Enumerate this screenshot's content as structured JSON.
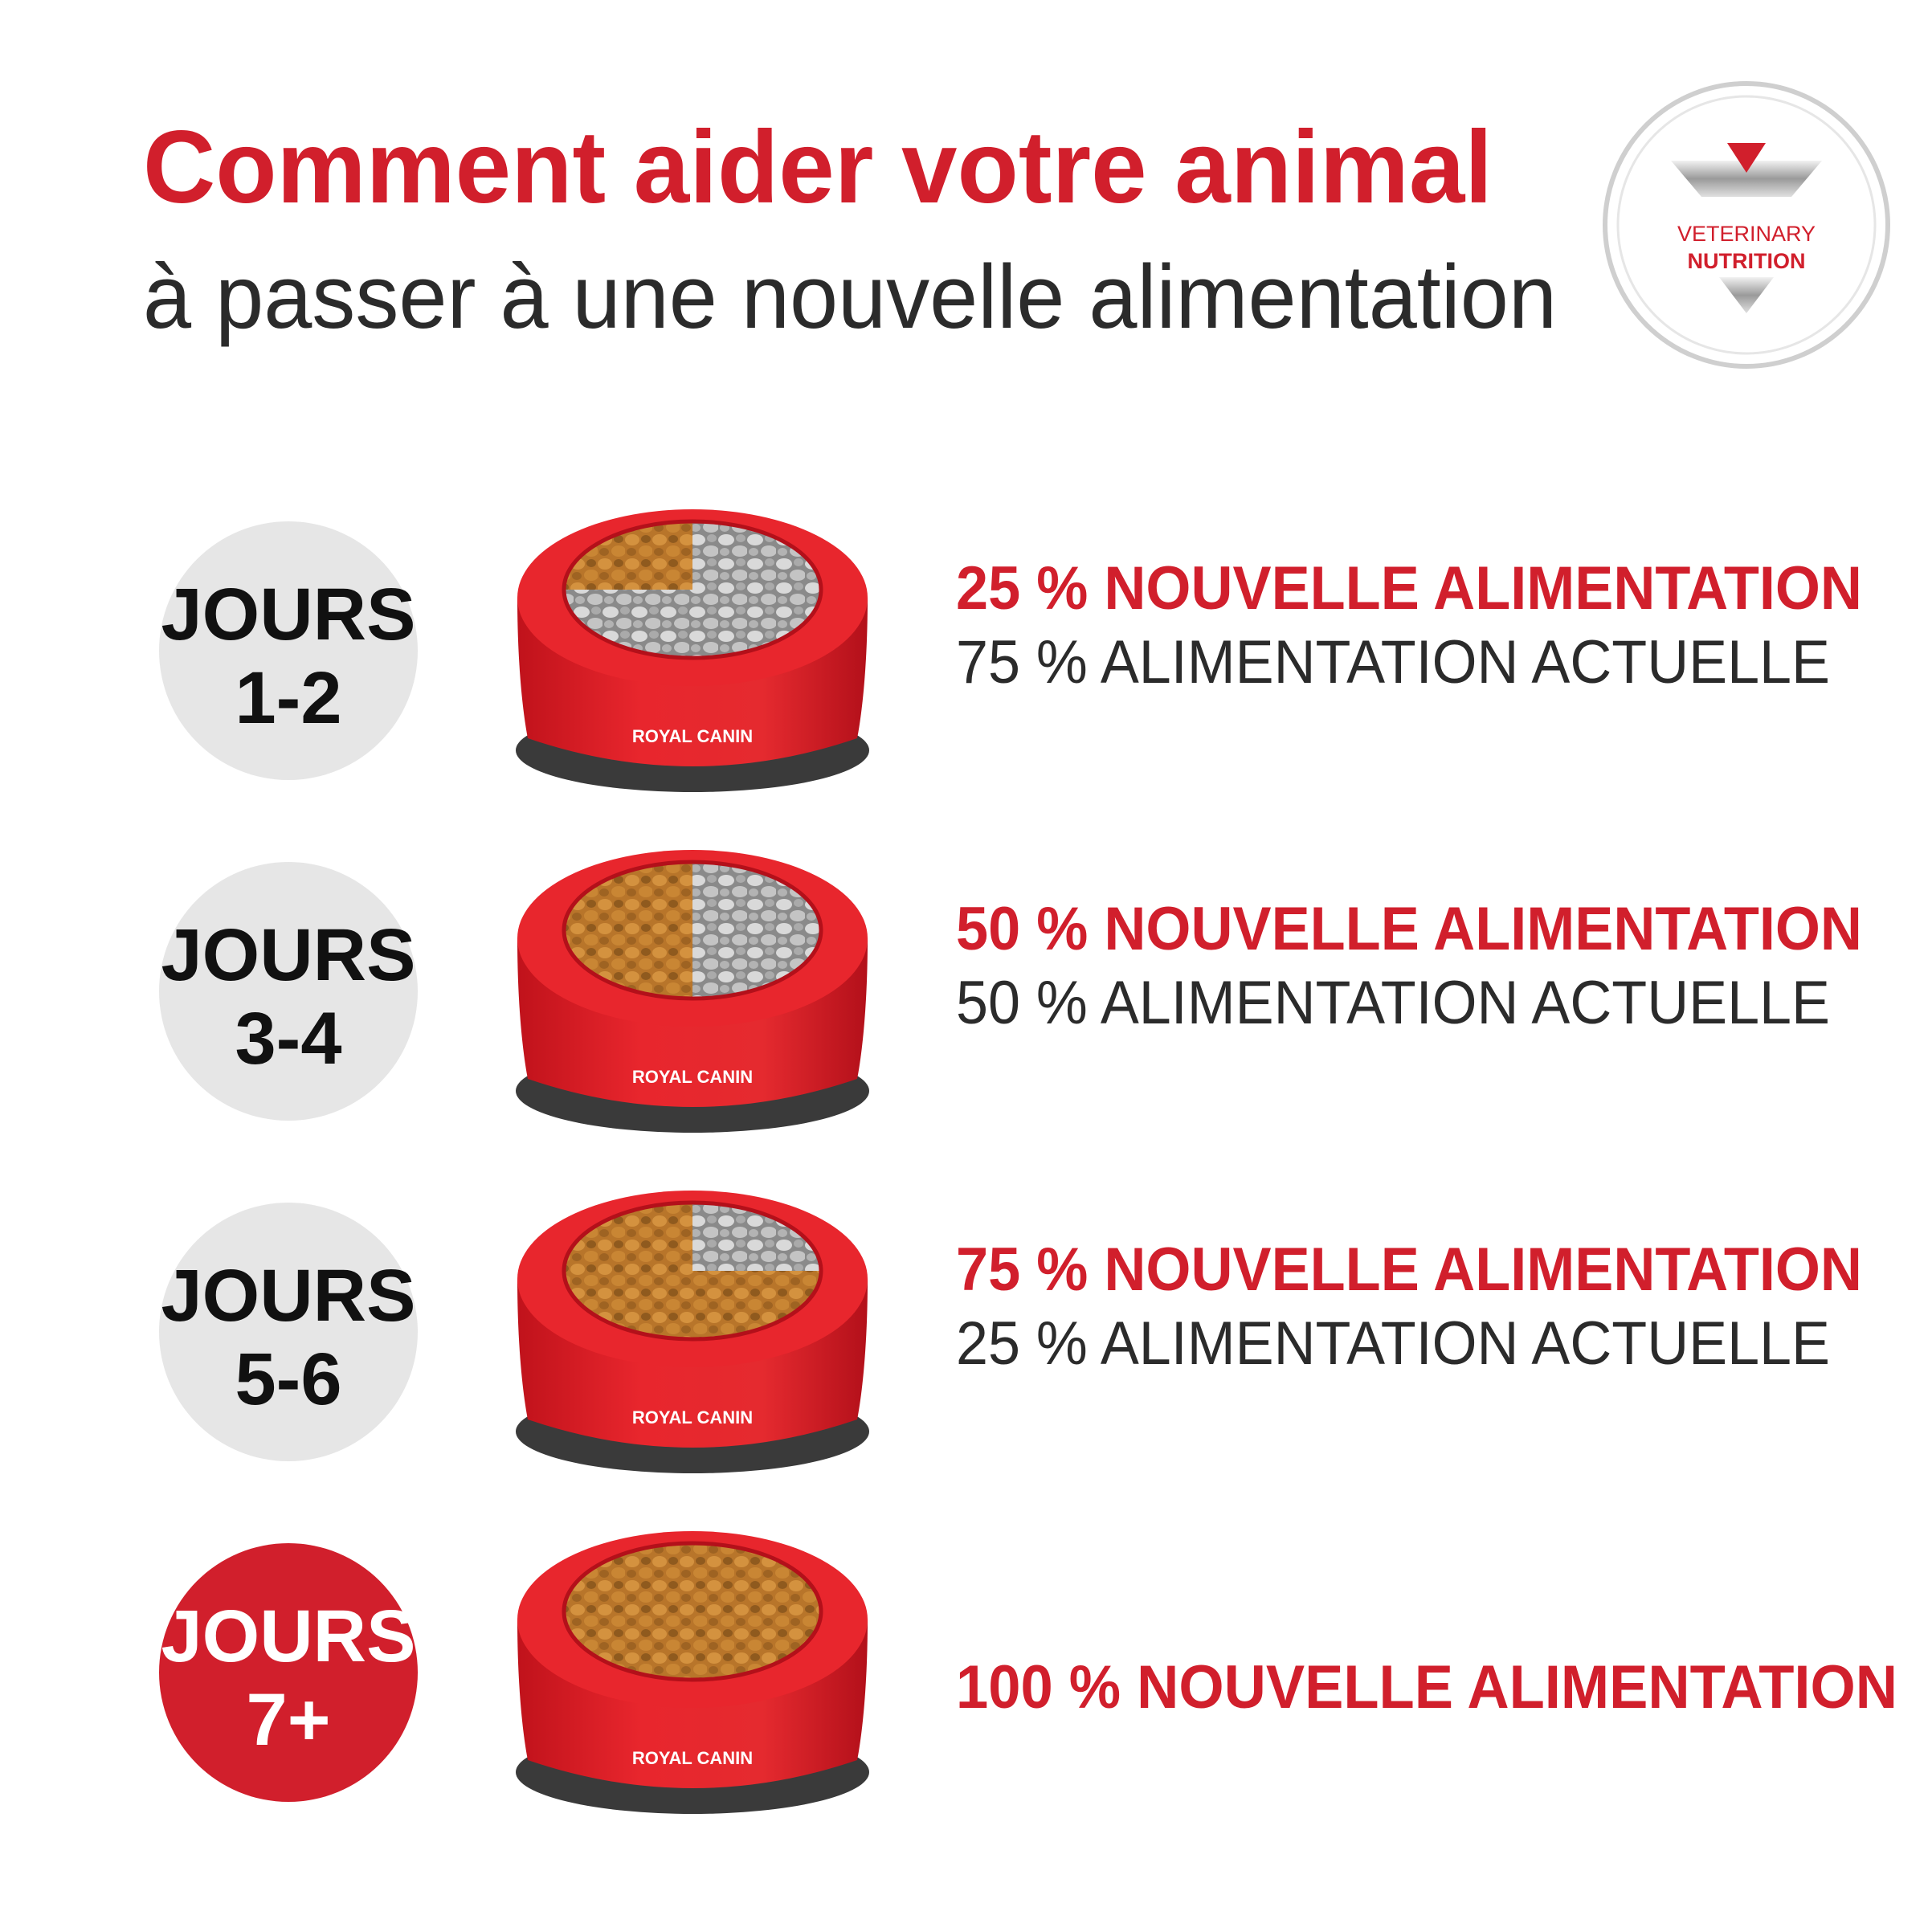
{
  "header": {
    "title": "Comment aider votre animal",
    "subtitle": "à passer à une nouvelle alimentation"
  },
  "badge": {
    "line1": "VETERINARY",
    "line2": "NUTRITION"
  },
  "brand": "ROYAL CANIN",
  "steps": [
    {
      "label": "JOURS",
      "days": "1-2",
      "new": "25 % NOUVELLE ALIMENTATION",
      "current": "75 % ALIMENTATION ACTUELLE"
    },
    {
      "label": "JOURS",
      "days": "3-4",
      "new": "50 % NOUVELLE ALIMENTATION",
      "current": "50 % ALIMENTATION ACTUELLE"
    },
    {
      "label": "JOURS",
      "days": "5-6",
      "new": "75 % NOUVELLE ALIMENTATION",
      "current": "25 % ALIMENTATION ACTUELLE"
    },
    {
      "label": "JOURS",
      "days": "7+",
      "new": "100 % NOUVELLE ALIMENTATION"
    }
  ]
}
